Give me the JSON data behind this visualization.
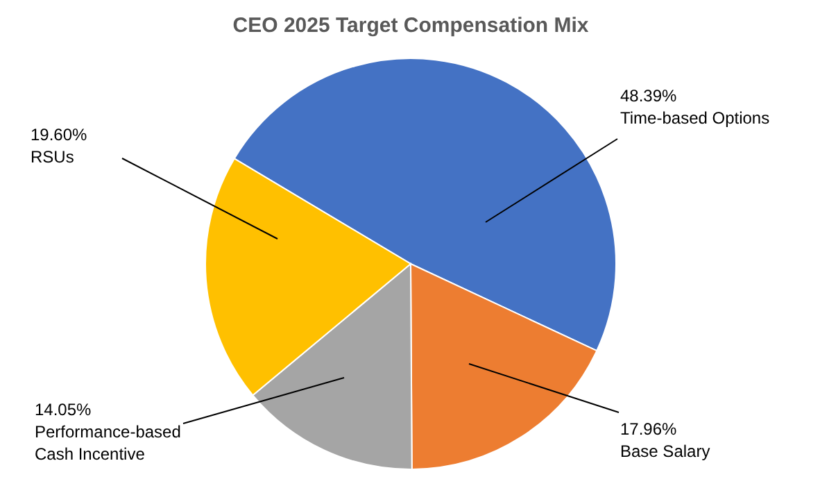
{
  "chart_data": {
    "type": "pie",
    "title": "CEO 2025 Target Compensation Mix",
    "categories": [
      "Time-based Options",
      "Base Salary",
      "Performance-based Cash Incentive",
      "RSUs"
    ],
    "values": [
      48.39,
      17.96,
      14.05,
      19.6
    ],
    "value_labels": [
      "48.39%",
      "17.96%",
      "14.05%",
      "19.60%"
    ],
    "colors": [
      "#4472c4",
      "#ed7d31",
      "#a5a5a5",
      "#ffc000"
    ]
  }
}
